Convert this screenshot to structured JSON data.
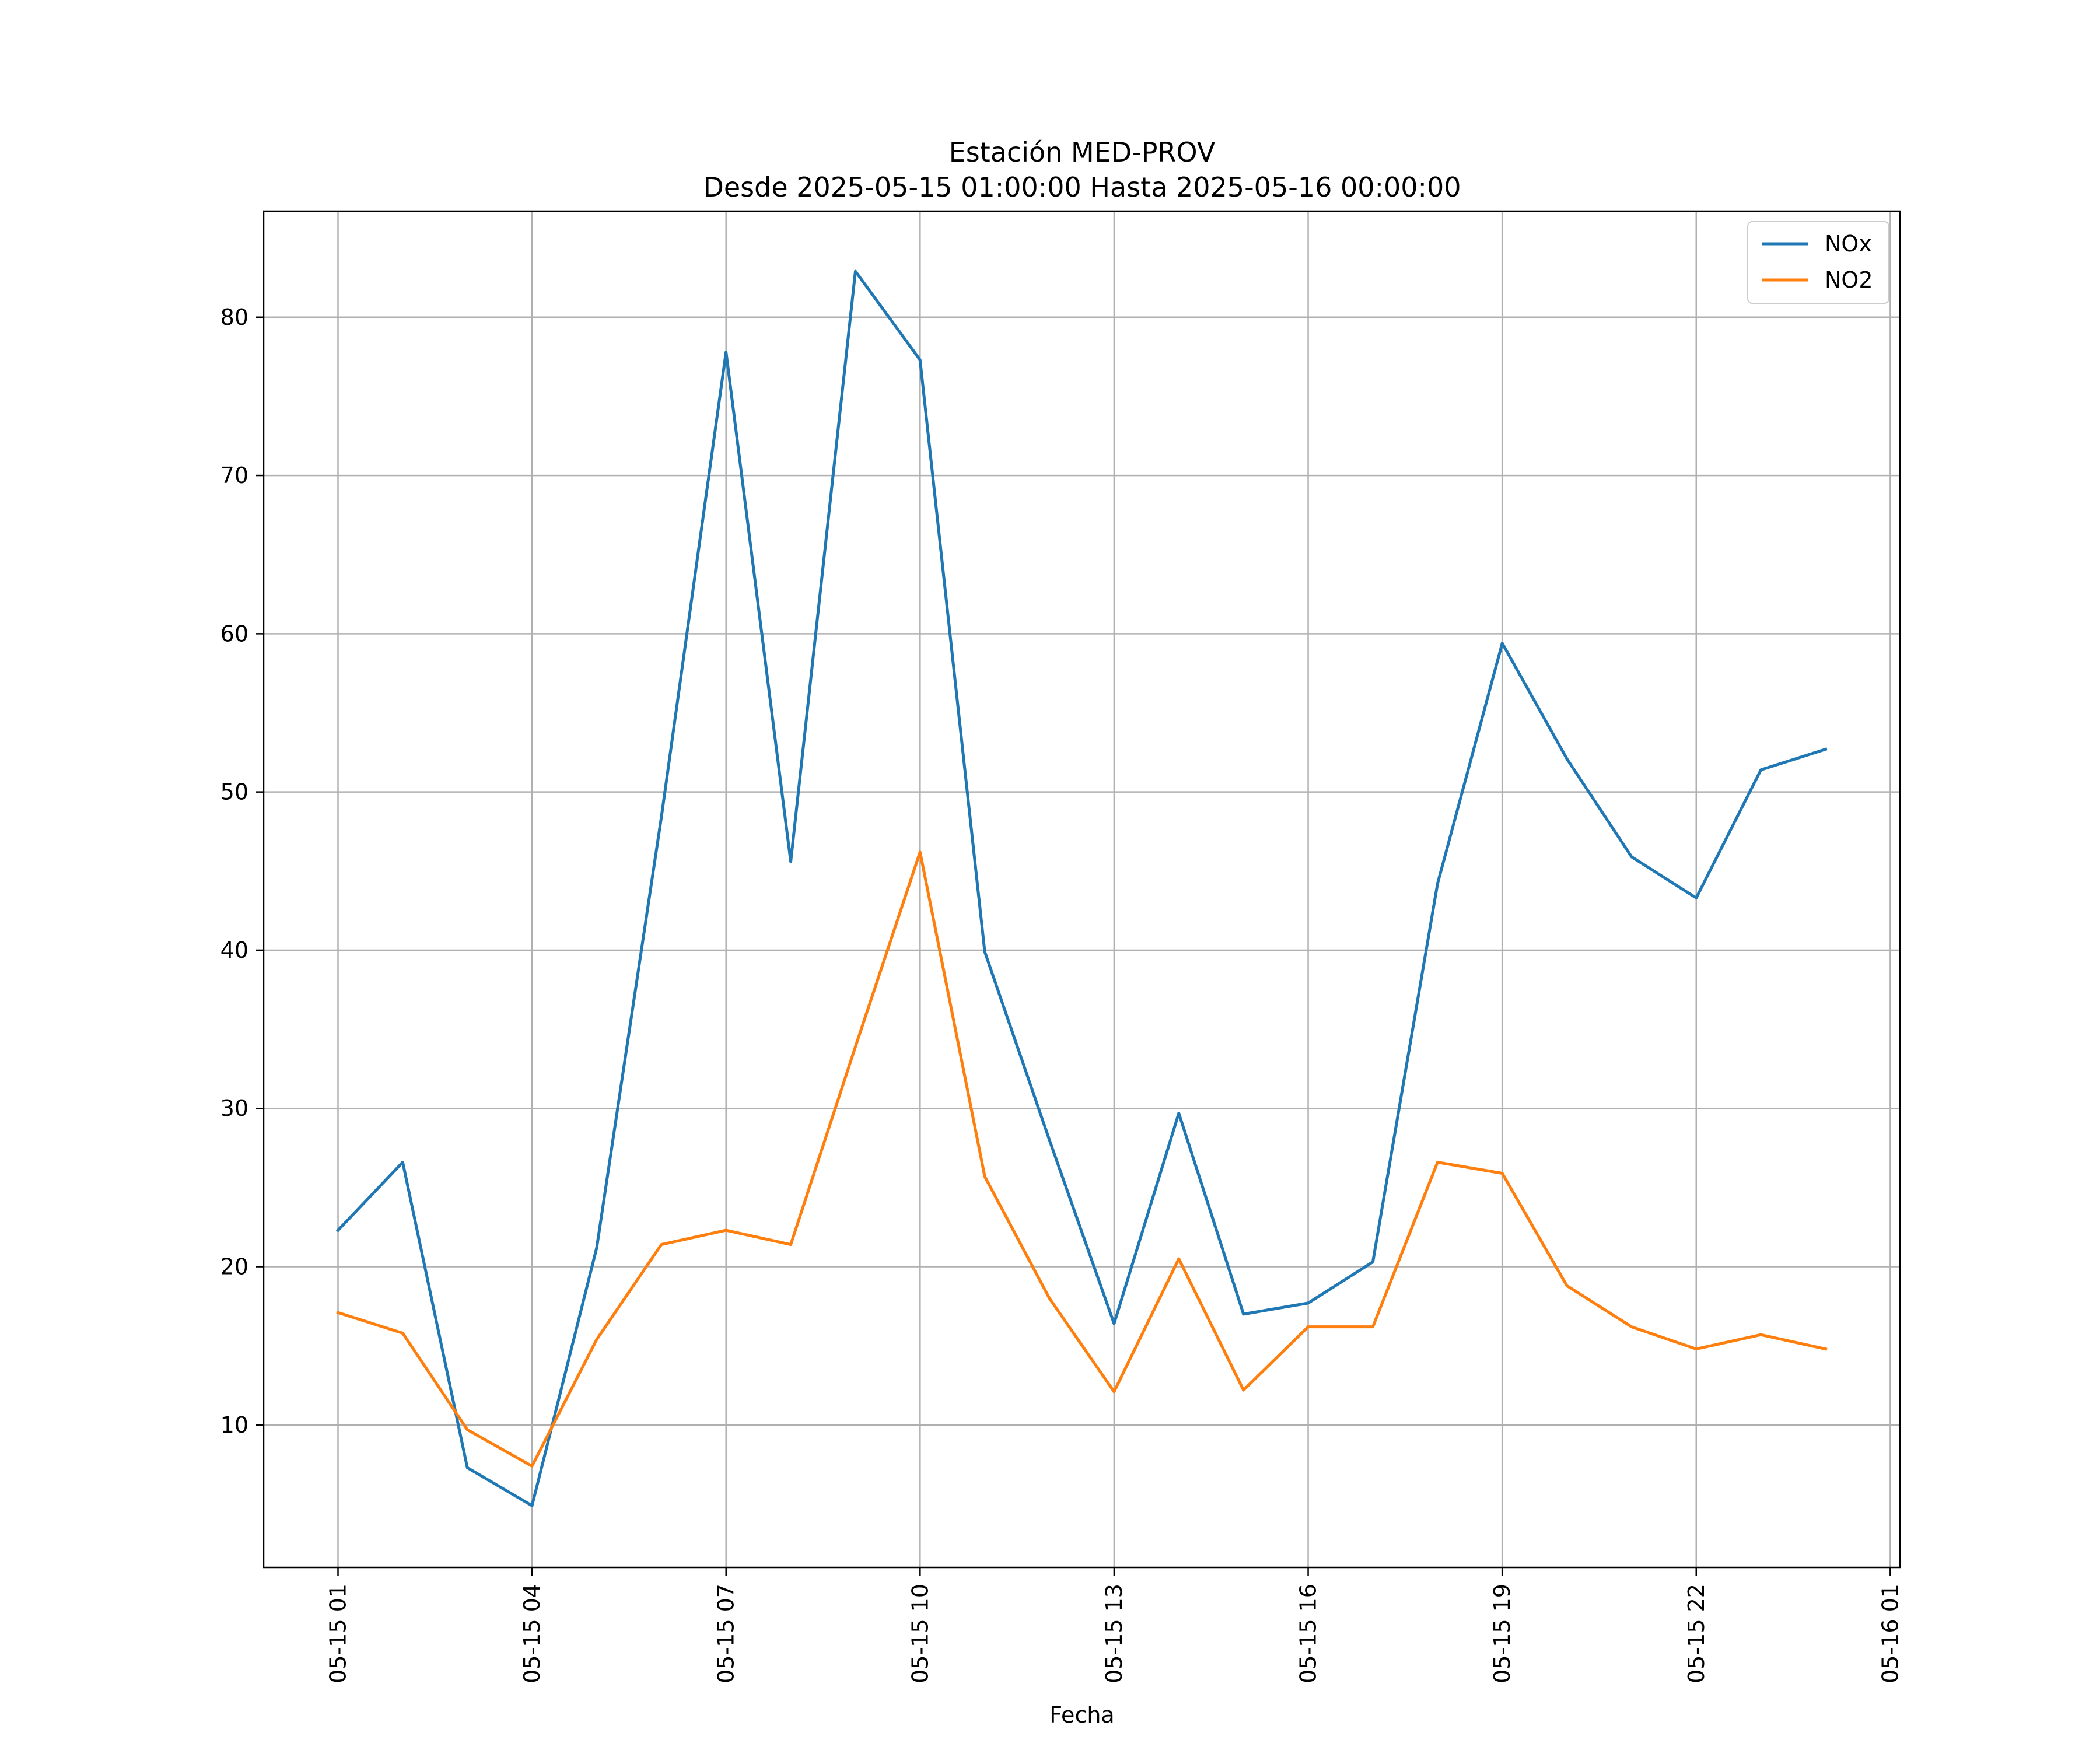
{
  "chart_data": {
    "type": "line",
    "title": "Estación MED-PROV",
    "subtitle": "Desde 2025-05-15 01:00:00 Hasta 2025-05-16 00:00:00",
    "xlabel": "Fecha",
    "ylabel": "",
    "x": [
      "2025-05-15 01:00",
      "2025-05-15 02:00",
      "2025-05-15 03:00",
      "2025-05-15 04:00",
      "2025-05-15 05:00",
      "2025-05-15 06:00",
      "2025-05-15 07:00",
      "2025-05-15 08:00",
      "2025-05-15 09:00",
      "2025-05-15 10:00",
      "2025-05-15 11:00",
      "2025-05-15 12:00",
      "2025-05-15 13:00",
      "2025-05-15 14:00",
      "2025-05-15 15:00",
      "2025-05-15 16:00",
      "2025-05-15 17:00",
      "2025-05-15 18:00",
      "2025-05-15 19:00",
      "2025-05-15 20:00",
      "2025-05-15 21:00",
      "2025-05-15 22:00",
      "2025-05-15 23:00",
      "2025-05-16 00:00"
    ],
    "xlim": [
      "2025-05-14 23:51",
      "2025-05-16 01:09"
    ],
    "ylim": [
      1,
      86.7
    ],
    "x_ticks": [
      {
        "at": "2025-05-15 01:00",
        "label": "05-15 01"
      },
      {
        "at": "2025-05-15 04:00",
        "label": "05-15 04"
      },
      {
        "at": "2025-05-15 07:00",
        "label": "05-15 07"
      },
      {
        "at": "2025-05-15 10:00",
        "label": "05-15 10"
      },
      {
        "at": "2025-05-15 13:00",
        "label": "05-15 13"
      },
      {
        "at": "2025-05-15 16:00",
        "label": "05-15 16"
      },
      {
        "at": "2025-05-15 19:00",
        "label": "05-15 19"
      },
      {
        "at": "2025-05-15 22:00",
        "label": "05-15 22"
      },
      {
        "at": "2025-05-16 01:00",
        "label": "05-16 01"
      }
    ],
    "y_ticks": [
      10,
      20,
      30,
      40,
      50,
      60,
      70,
      80
    ],
    "grid": true,
    "legend_position": "top-right",
    "series": [
      {
        "name": "NOx",
        "color": "#1f77b4",
        "values": [
          22.3,
          26.6,
          7.3,
          4.9,
          21.2,
          48.4,
          77.8,
          45.6,
          82.9,
          77.3,
          39.9,
          28.0,
          16.4,
          29.7,
          17.0,
          17.7,
          20.3,
          44.2,
          59.4,
          52.1,
          45.9,
          43.3,
          51.4,
          52.7
        ]
      },
      {
        "name": "NO2",
        "color": "#ff7f0e",
        "values": [
          17.1,
          15.8,
          9.7,
          7.4,
          15.4,
          21.4,
          22.3,
          21.4,
          33.9,
          46.2,
          25.7,
          18.0,
          12.1,
          20.5,
          12.2,
          16.2,
          16.2,
          26.6,
          25.9,
          18.8,
          16.2,
          14.8,
          15.7,
          14.8
        ]
      }
    ]
  }
}
